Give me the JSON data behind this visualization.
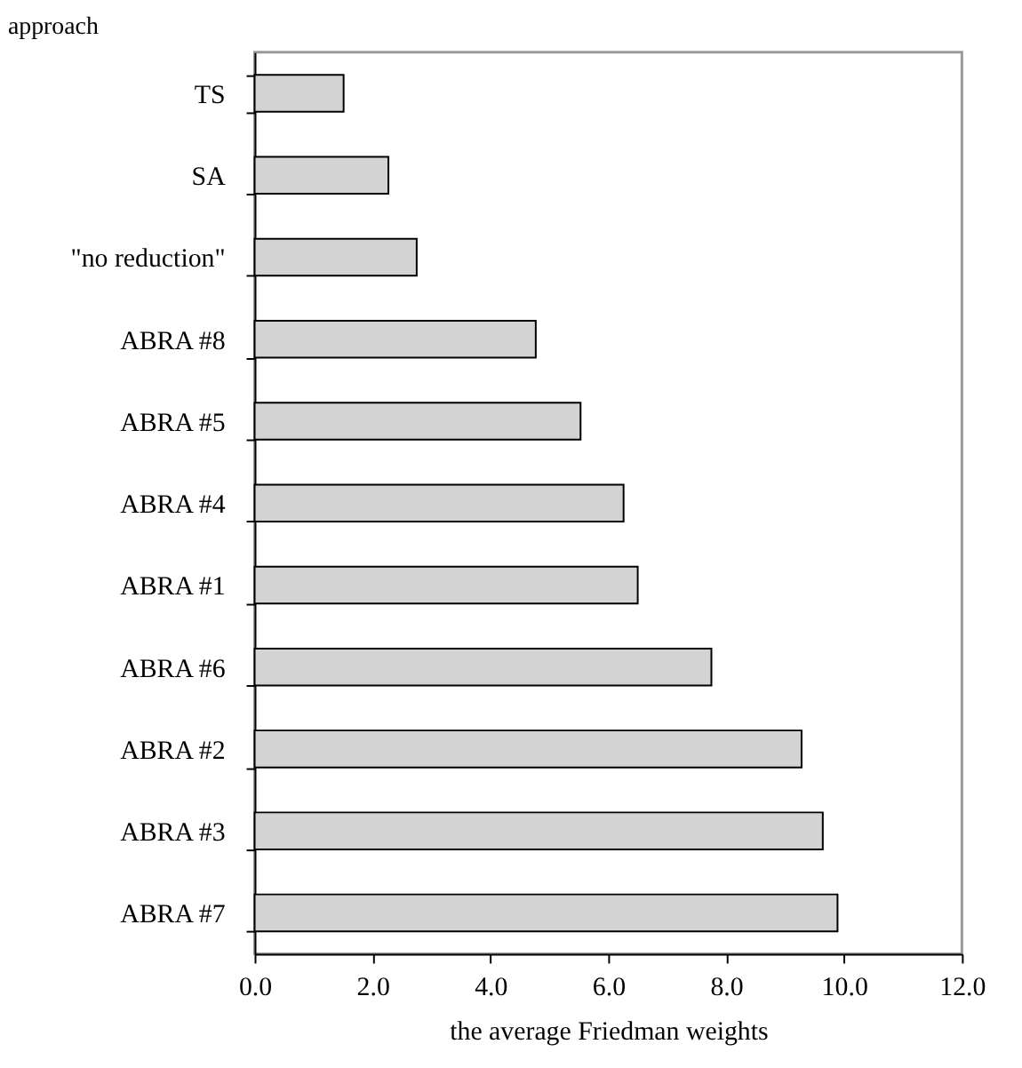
{
  "chart_data": {
    "type": "bar",
    "orientation": "horizontal",
    "ylabel": "approach",
    "xlabel": "the average Friedman weights",
    "categories": [
      "TS",
      "SA",
      "\"no reduction\"",
      "ABRA #8",
      "ABRA #5",
      "ABRA #4",
      "ABRA #1",
      "ABRA #6",
      "ABRA #2",
      "ABRA #3",
      "ABRA #7"
    ],
    "values": [
      1.51,
      2.27,
      2.75,
      4.77,
      5.53,
      6.26,
      6.5,
      7.75,
      9.28,
      9.64,
      9.89
    ],
    "color": "#d3d3d3",
    "xlim": [
      0,
      12
    ],
    "xticks": [
      {
        "value": 0,
        "label": "0.0"
      },
      {
        "value": 2,
        "label": "2.0"
      },
      {
        "value": 4,
        "label": "4.0"
      },
      {
        "value": 6,
        "label": "6.0"
      },
      {
        "value": 8,
        "label": "8.0"
      },
      {
        "value": 10,
        "label": "10.0"
      },
      {
        "value": 12,
        "label": "12.0"
      }
    ],
    "grid": false
  }
}
